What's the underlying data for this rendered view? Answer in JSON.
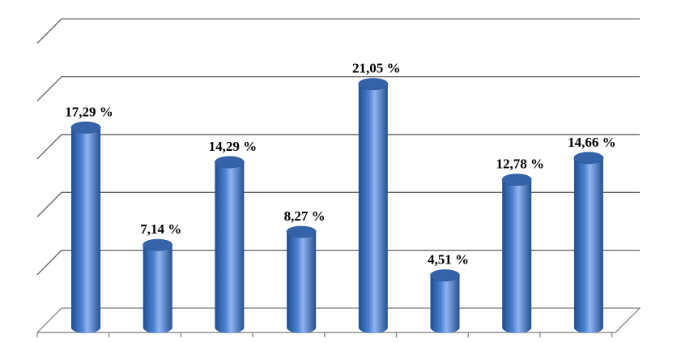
{
  "chart_data": {
    "type": "bar",
    "style": "3d-cylinder",
    "categories": [
      "",
      "",
      "",
      "",
      "",
      "",
      "",
      ""
    ],
    "values": [
      17.29,
      7.14,
      14.29,
      8.27,
      21.05,
      4.51,
      12.78,
      14.66
    ],
    "data_labels": [
      "17,29 %",
      "7,14 %",
      "14,29 %",
      "8,27 %",
      "21,05 %",
      "4,51 %",
      "12,78 %",
      "14,66 %"
    ],
    "title": "",
    "xlabel": "",
    "ylabel": "",
    "ylim": [
      0,
      25
    ],
    "y_tick_step": 5,
    "y_tick_labels_shown": false,
    "grid": true,
    "legend": "none",
    "colors": {
      "bar_dark": "#1f4f8f",
      "bar_mid": "#4a7fcf",
      "bar_light": "#8fb4ee",
      "bar_top": "#3463a8",
      "grid": "#5f5f5f"
    }
  }
}
